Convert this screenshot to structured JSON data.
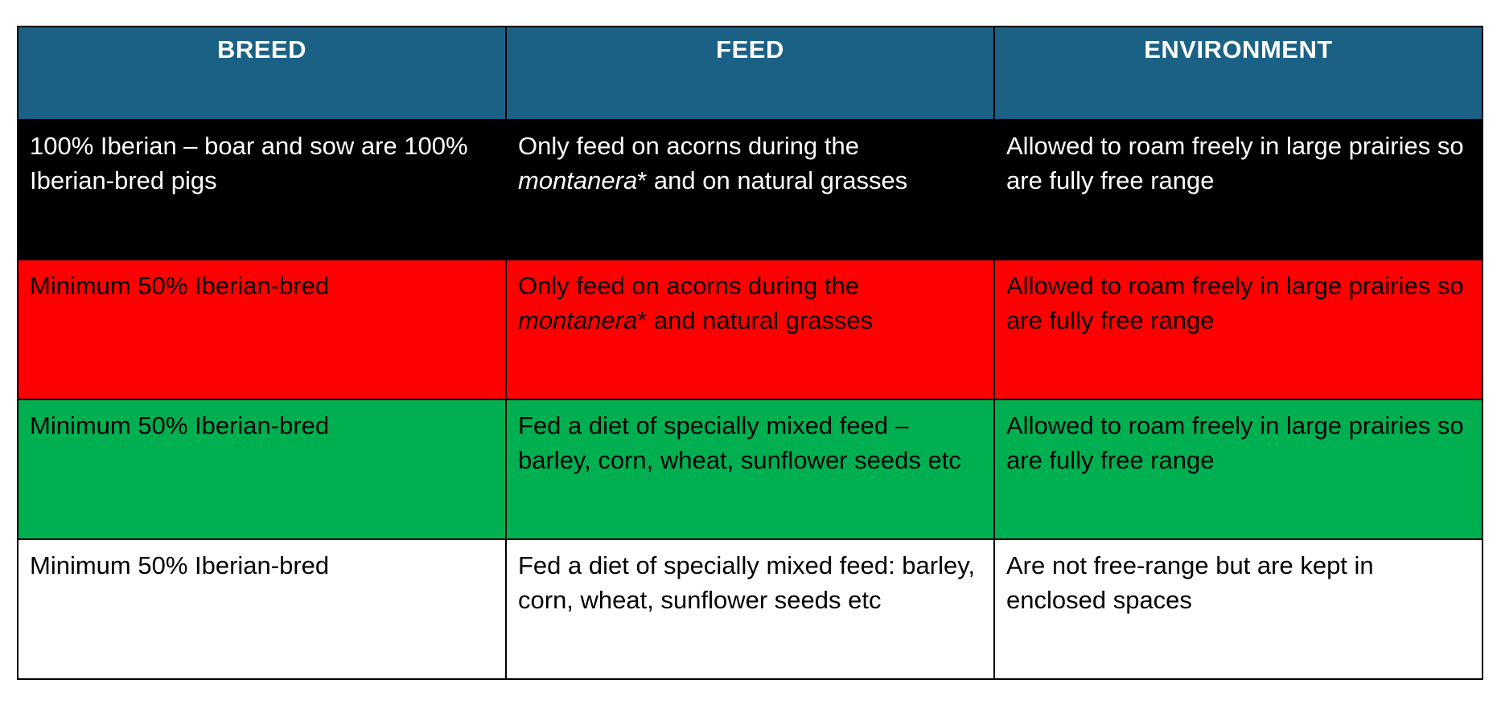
{
  "table": {
    "headers": [
      "BREED",
      "FEED",
      "ENVIRONMENT"
    ],
    "rows": [
      {
        "color": "#000000",
        "breed": "100% Iberian – boar and sow are 100% Iberian-bred pigs",
        "feed_prefix": "Only feed on acorns during the ",
        "feed_italic": "montanera",
        "feed_suffix": "* and on natural grasses",
        "environment": "Allowed to roam freely in large prairies so are fully free range"
      },
      {
        "color": "#ff0000",
        "breed": "Minimum 50% Iberian-bred",
        "feed_prefix": "Only feed on acorns during the ",
        "feed_italic": "montanera",
        "feed_suffix": "* and natural grasses",
        "environment": "Allowed to roam freely in large prairies so are fully free range"
      },
      {
        "color": "#00b050",
        "breed": "Minimum 50% Iberian-bred",
        "feed": "Fed a diet of specially mixed feed – barley, corn, wheat, sunflower seeds etc",
        "environment": "Allowed to roam freely in large prairies so are fully free range"
      },
      {
        "color": "#ffffff",
        "breed": "Minimum 50% Iberian-bred",
        "feed": "Fed a diet of specially mixed feed: barley, corn, wheat, sunflower seeds etc",
        "environment": "Are not free-range but are kept in enclosed spaces"
      }
    ]
  }
}
